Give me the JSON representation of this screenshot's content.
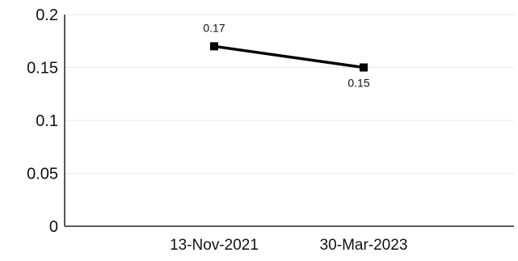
{
  "chart_data": {
    "type": "line",
    "categories": [
      "13-Nov-2021",
      "30-Mar-2023"
    ],
    "series": [
      {
        "values": [
          0.17,
          0.15
        ],
        "data_labels": [
          "0.17",
          "0.15"
        ],
        "color": "#000000"
      }
    ],
    "y_ticks": [
      "0",
      "0.05",
      "0.1",
      "0.15",
      "0.2"
    ],
    "y_tick_values": [
      0,
      0.05,
      0.1,
      0.15,
      0.2
    ],
    "ylim": [
      0,
      0.2
    ],
    "grid": true,
    "legend": "none",
    "marker": "square",
    "title": "",
    "xlabel": "",
    "ylabel": ""
  }
}
